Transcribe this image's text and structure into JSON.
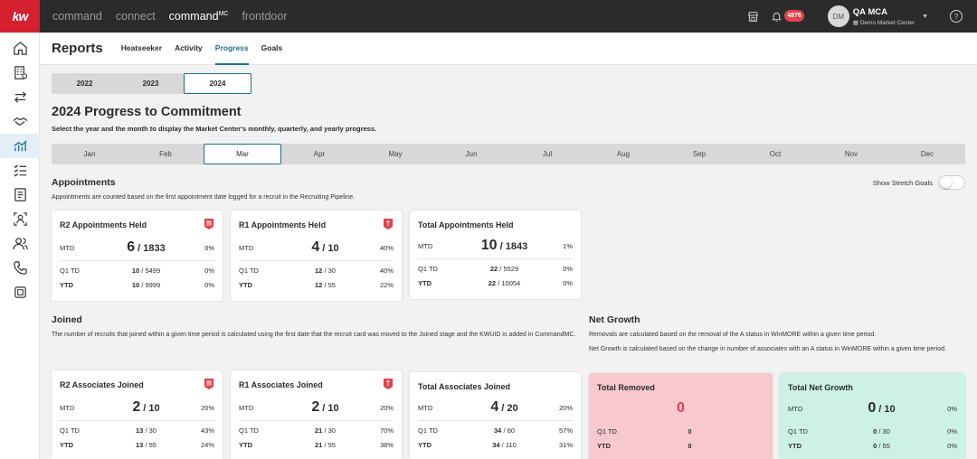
{
  "topbar": {
    "logo": "kw",
    "nav": [
      "command",
      "connect",
      "commandMC",
      "frontdoor"
    ],
    "nav_mc_sup": "MC",
    "notification_count": "4876",
    "user_initials": "DM",
    "user_name": "QA MCA",
    "market_center": "Demo Market Center"
  },
  "sidebar": {
    "icons": [
      "home-icon",
      "building-icon",
      "transfer-icon",
      "handshake-icon",
      "chart-icon",
      "checklist-icon",
      "document-icon",
      "contact-search-icon",
      "people-icon",
      "phone-icon",
      "reports-icon"
    ],
    "active_index": 4
  },
  "header": {
    "title": "Reports",
    "tabs": [
      "Heatseeker",
      "Activity",
      "Progress",
      "Goals"
    ],
    "active_tab": "Progress"
  },
  "years": [
    "2022",
    "2023",
    "2024"
  ],
  "selected_year": "2024",
  "page": {
    "heading": "2024 Progress to Commitment",
    "subheading": "Select the year and the month to display the Market Center's monthly, quarterly, and yearly progress."
  },
  "months": [
    "Jan",
    "Feb",
    "Mar",
    "Apr",
    "May",
    "Jun",
    "Jul",
    "Aug",
    "Sep",
    "Oct",
    "Nov",
    "Dec"
  ],
  "selected_month": "Mar",
  "appointments": {
    "title": "Appointments",
    "desc": "Appointments are counted based on the first appointment date logged for a recruit in the Recruiting Pipeline.",
    "stretch_label": "Show Stretch Goals",
    "cards": [
      {
        "title": "R2 Appointments Held",
        "mtd": "6",
        "mtd_goal": "1833",
        "mtd_pct": "0%",
        "q1": "10",
        "q1_goal": "5499",
        "q1_pct": "0%",
        "ytd": "10",
        "ytd_goal": "9999",
        "ytd_pct": "0%"
      },
      {
        "title": "R1 Appointments Held",
        "mtd": "4",
        "mtd_goal": "10",
        "mtd_pct": "40%",
        "q1": "12",
        "q1_goal": "30",
        "q1_pct": "40%",
        "ytd": "12",
        "ytd_goal": "55",
        "ytd_pct": "22%"
      },
      {
        "title": "Total Appointments Held",
        "mtd": "10",
        "mtd_goal": "1843",
        "mtd_pct": "1%",
        "q1": "22",
        "q1_goal": "5529",
        "q1_pct": "0%",
        "ytd": "22",
        "ytd_goal": "10054",
        "ytd_pct": "0%"
      }
    ]
  },
  "joined": {
    "title": "Joined",
    "desc": "The number of recruits that joined within a given time period is calculated using the first date that the recruit card was moved to the Joined stage and the KWUID is added in CommandMC.",
    "cards": [
      {
        "title": "R2 Associates Joined",
        "mtd": "2",
        "mtd_goal": "10",
        "mtd_pct": "20%",
        "q1": "13",
        "q1_goal": "30",
        "q1_pct": "43%",
        "ytd": "13",
        "ytd_goal": "55",
        "ytd_pct": "24%"
      },
      {
        "title": "R1 Associates Joined",
        "mtd": "2",
        "mtd_goal": "10",
        "mtd_pct": "20%",
        "q1": "21",
        "q1_goal": "30",
        "q1_pct": "70%",
        "ytd": "21",
        "ytd_goal": "55",
        "ytd_pct": "38%"
      },
      {
        "title": "Total Associates Joined",
        "mtd": "4",
        "mtd_goal": "20",
        "mtd_pct": "20%",
        "q1": "34",
        "q1_goal": "60",
        "q1_pct": "57%",
        "ytd": "34",
        "ytd_goal": "110",
        "ytd_pct": "31%"
      }
    ]
  },
  "net_growth": {
    "title": "Net Growth",
    "desc1": "Removals are calculated based on the removal of the A status in WinMORE within a given time period.",
    "desc2": "Net Growth is calculated based on the change in number of associates with an A status in WinMORE within a given time period.",
    "removed": {
      "title": "Total Removed",
      "big": "0",
      "q1": "0",
      "ytd": "0"
    },
    "net": {
      "title": "Total Net Growth",
      "mtd": "0",
      "mtd_goal": "10",
      "mtd_pct": "0%",
      "q1": "0",
      "q1_goal": "30",
      "q1_pct": "0%",
      "ytd": "0",
      "ytd_goal": "55",
      "ytd_pct": "0%"
    }
  },
  "labels": {
    "mtd": "MTD",
    "q1": "Q1 TD",
    "ytd": "YTD",
    "slash": "/"
  },
  "colors": {
    "brand_red": "#d5202f",
    "accent": "#1f6f8b",
    "pink_card": "#f7c8cd",
    "mint_card": "#cdf2e5"
  }
}
